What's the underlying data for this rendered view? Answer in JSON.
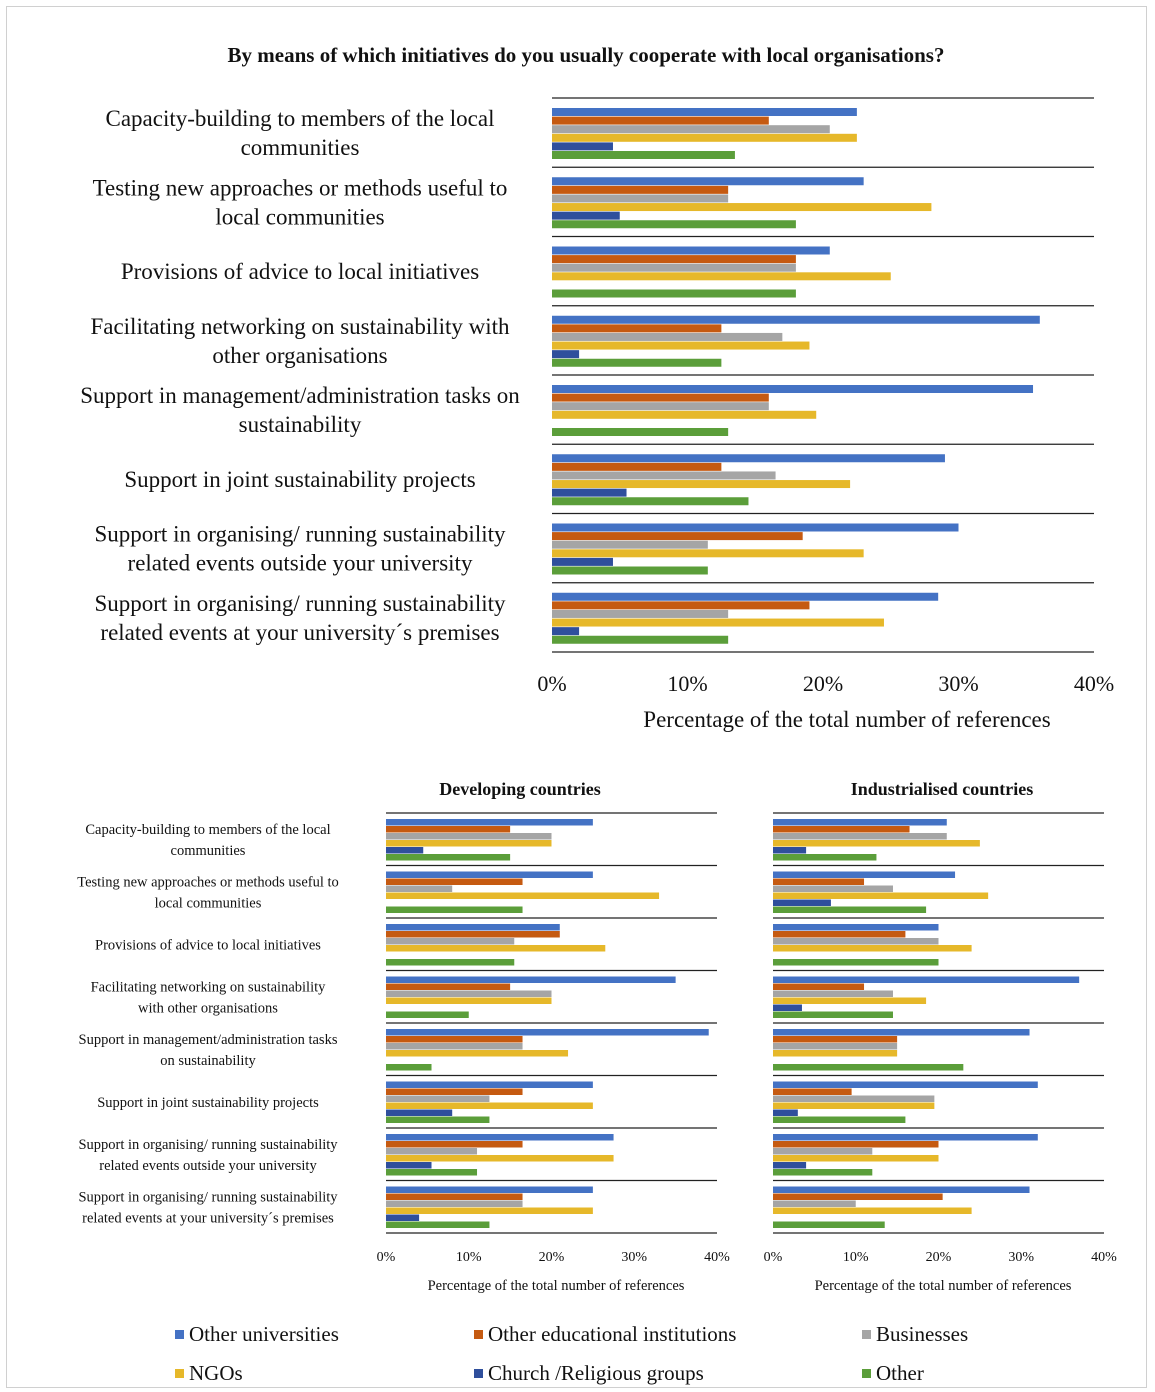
{
  "colors": {
    "Other universities": "#4472c4",
    "Other educational institutions": "#c55a11",
    "Businesses": "#a5a5a5",
    "NGOs": "#e6b82a",
    "Church /Religious groups": "#2f4f9c",
    "Other": "#5b9e3a"
  },
  "legend": [
    "Other universities",
    "Other educational institutions",
    "Businesses",
    "NGOs",
    "Church /Religious groups",
    "Other"
  ],
  "chart_data": [
    {
      "type": "bar",
      "orientation": "horizontal",
      "title": "By means of which initiatives do you usually cooperate with local organisations?",
      "xlabel": "Percentage of the total number of references",
      "xlim": [
        0,
        40
      ],
      "xticks": [
        "0%",
        "10%",
        "20%",
        "30%",
        "40%"
      ],
      "categories": [
        "Capacity-building to members of the local communities",
        "Testing new approaches or methods useful to local communities",
        "Provisions of advice to local initiatives",
        "Facilitating networking on sustainability with other organisations",
        "Support in management/administration tasks on sustainability",
        "Support in joint sustainability projects",
        "Support in organising/ running sustainability related events outside your university",
        "Support in organising/ running sustainability related events at your university´s premises"
      ],
      "series": [
        {
          "name": "Other universities",
          "values": [
            22.5,
            23,
            20.5,
            36,
            35.5,
            29,
            30,
            28.5
          ]
        },
        {
          "name": "Other educational institutions",
          "values": [
            16,
            13,
            18,
            12.5,
            16,
            12.5,
            18.5,
            19
          ]
        },
        {
          "name": "Businesses",
          "values": [
            20.5,
            13,
            18,
            17,
            16,
            16.5,
            11.5,
            13
          ]
        },
        {
          "name": "NGOs",
          "values": [
            22.5,
            28,
            25,
            19,
            19.5,
            22,
            23,
            24.5
          ]
        },
        {
          "name": "Church /Religious groups",
          "values": [
            4.5,
            5,
            0,
            2,
            0,
            5.5,
            4.5,
            2
          ]
        },
        {
          "name": "Other",
          "values": [
            13.5,
            18,
            18,
            12.5,
            13,
            14.5,
            11.5,
            13
          ]
        }
      ],
      "legend_position": "bottom",
      "grid": false
    },
    {
      "type": "bar",
      "orientation": "horizontal",
      "title": "Developing countries",
      "xlabel": "Percentage of the total number of references",
      "xlim": [
        0,
        40
      ],
      "xticks": [
        "0%",
        "10%",
        "20%",
        "30%",
        "40%"
      ],
      "categories": [
        "Capacity-building to members of the local communities",
        "Testing new approaches or methods useful to local communities",
        "Provisions of advice to local initiatives",
        "Facilitating networking on sustainability with other organisations",
        "Support in management/administration tasks on sustainability",
        "Support in joint sustainability projects",
        "Support in organising/ running sustainability related events outside your university",
        "Support in organising/ running sustainability related events at your university´s premises"
      ],
      "series": [
        {
          "name": "Other universities",
          "values": [
            25,
            25,
            21,
            35,
            39,
            25,
            27.5,
            25
          ]
        },
        {
          "name": "Other educational institutions",
          "values": [
            15,
            16.5,
            21,
            15,
            16.5,
            16.5,
            16.5,
            16.5
          ]
        },
        {
          "name": "Businesses",
          "values": [
            20,
            8,
            15.5,
            20,
            16.5,
            12.5,
            11,
            16.5
          ]
        },
        {
          "name": "NGOs",
          "values": [
            20,
            33,
            26.5,
            20,
            22,
            25,
            27.5,
            25
          ]
        },
        {
          "name": "Church /Religious groups",
          "values": [
            4.5,
            0,
            0,
            0,
            0,
            8,
            5.5,
            4
          ]
        },
        {
          "name": "Other",
          "values": [
            15,
            16.5,
            15.5,
            10,
            5.5,
            12.5,
            11,
            12.5
          ]
        }
      ],
      "grid": false
    },
    {
      "type": "bar",
      "orientation": "horizontal",
      "title": "Industrialised countries",
      "xlabel": "Percentage of the total number of references",
      "xlim": [
        0,
        40
      ],
      "xticks": [
        "0%",
        "10%",
        "20%",
        "30%",
        "40%"
      ],
      "categories": [
        "Capacity-building to members of the local communities",
        "Testing new approaches or methods useful to local communities",
        "Provisions of advice to local initiatives",
        "Facilitating networking on sustainability with other organisations",
        "Support in management/administration tasks on sustainability",
        "Support in joint sustainability projects",
        "Support in organising/ running sustainability related events outside your university",
        "Support in organising/ running sustainability related events at your university´s premises"
      ],
      "series": [
        {
          "name": "Other universities",
          "values": [
            21,
            22,
            20,
            37,
            31,
            32,
            32,
            31
          ]
        },
        {
          "name": "Other educational institutions",
          "values": [
            16.5,
            11,
            16,
            11,
            15,
            9.5,
            20,
            20.5
          ]
        },
        {
          "name": "Businesses",
          "values": [
            21,
            14.5,
            20,
            14.5,
            15,
            19.5,
            12,
            10
          ]
        },
        {
          "name": "NGOs",
          "values": [
            25,
            26,
            24,
            18.5,
            15,
            19.5,
            20,
            24
          ]
        },
        {
          "name": "Church /Religious groups",
          "values": [
            4,
            7,
            0,
            3.5,
            0,
            3,
            4,
            0
          ]
        },
        {
          "name": "Other",
          "values": [
            12.5,
            18.5,
            20,
            14.5,
            23,
            16,
            12,
            13.5
          ]
        }
      ],
      "grid": false
    }
  ],
  "top_labels": [
    [
      "Capacity-building to members of the local",
      "communities"
    ],
    [
      "Testing new approaches or methods useful to",
      "local communities"
    ],
    [
      "Provisions of advice to local initiatives"
    ],
    [
      "Facilitating networking on sustainability with",
      "other organisations"
    ],
    [
      "Support in management/administration tasks on",
      "sustainability"
    ],
    [
      "Support in joint sustainability projects"
    ],
    [
      "Support in organising/ running sustainability",
      "related events outside your university"
    ],
    [
      "Support in organising/ running sustainability",
      "related events at your university´s premises"
    ]
  ],
  "small_labels": [
    [
      "Capacity-building to members of the local",
      "communities"
    ],
    [
      "Testing new approaches or methods useful to",
      "local communities"
    ],
    [
      "Provisions of advice to local initiatives"
    ],
    [
      "Facilitating networking on sustainability",
      "with other organisations"
    ],
    [
      "Support in management/administration tasks",
      "on sustainability"
    ],
    [
      "Support in joint sustainability projects"
    ],
    [
      "Support in organising/ running sustainability",
      "related events outside your university"
    ],
    [
      "Support in organising/ running sustainability",
      "related events at your university´s premises"
    ]
  ]
}
